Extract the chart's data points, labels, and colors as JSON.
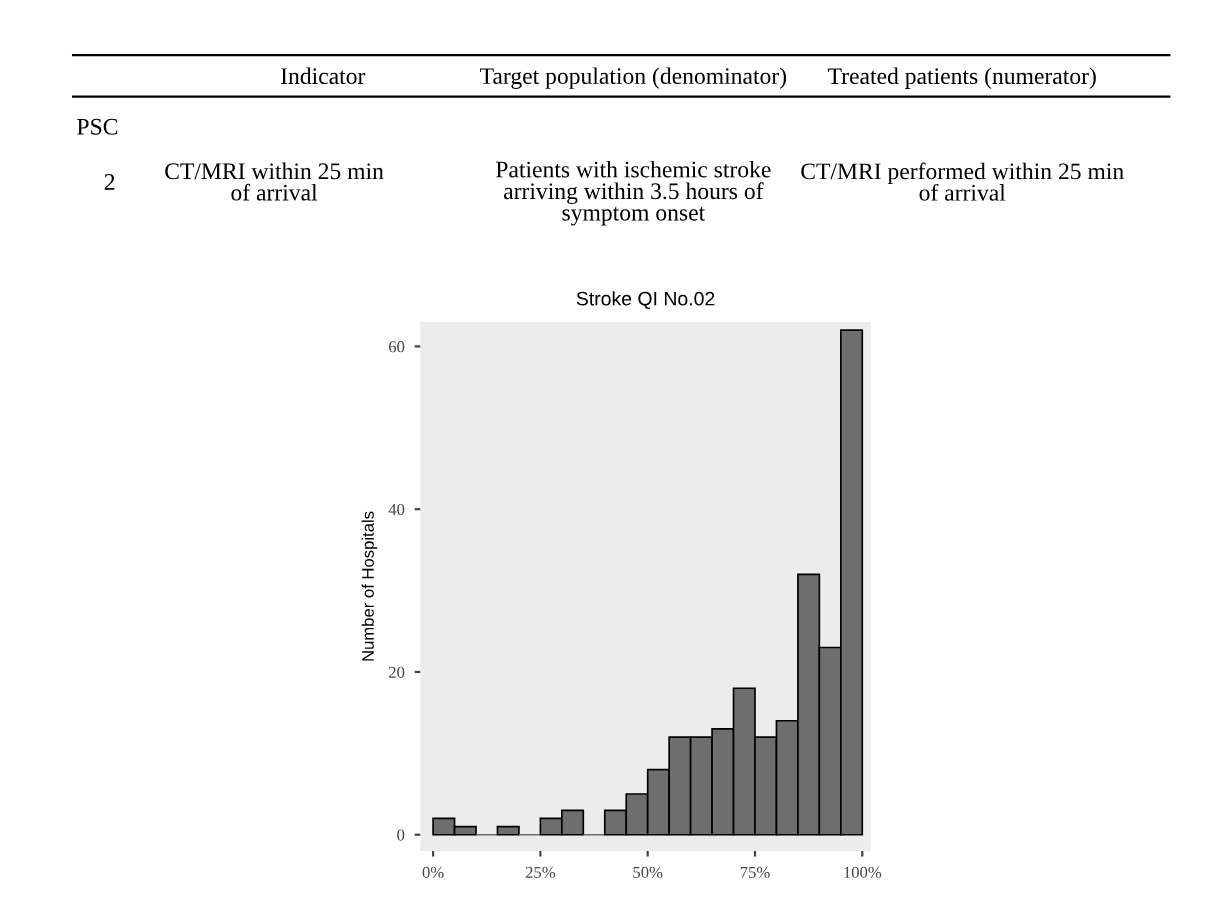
{
  "chart_data": [
    {
      "type": "other",
      "annotations": [
        "Indicator",
        "Target population (denominator)",
        "Treated patients (numerator)",
        "PSC",
        "2",
        "CT/MRI within 25 min\nof arrival",
        "Patients with ischemic stroke\narriving within 3.5 hours of\nsymptom onset",
        "CT/MRI performed within 25 min\nof arrival"
      ]
    },
    {
      "type": "histogram",
      "title": "Stroke QI No.02",
      "ylabel": "Number of Hospitals",
      "bins": [
        0,
        5,
        10,
        15,
        20,
        25,
        30,
        35,
        40,
        45,
        50,
        55,
        60,
        65,
        70,
        75,
        80,
        85,
        90,
        95,
        100
      ],
      "values": [
        2,
        1,
        0,
        1,
        0,
        2,
        3,
        0,
        3,
        5,
        8,
        12,
        12,
        13,
        18,
        12,
        14,
        32,
        23,
        62
      ],
      "color": "#6e6e6e",
      "xlim": [
        -3,
        102
      ],
      "xticks": [
        {
          "value": 0,
          "label": "0%"
        },
        {
          "value": 25,
          "label": "25%"
        },
        {
          "value": 50,
          "label": "50%"
        },
        {
          "value": 75,
          "label": "75%"
        },
        {
          "value": 100,
          "label": "100%"
        }
      ],
      "ylim": [
        -2,
        63
      ],
      "yticks": [
        0,
        20,
        40,
        60
      ],
      "grid": false
    }
  ]
}
